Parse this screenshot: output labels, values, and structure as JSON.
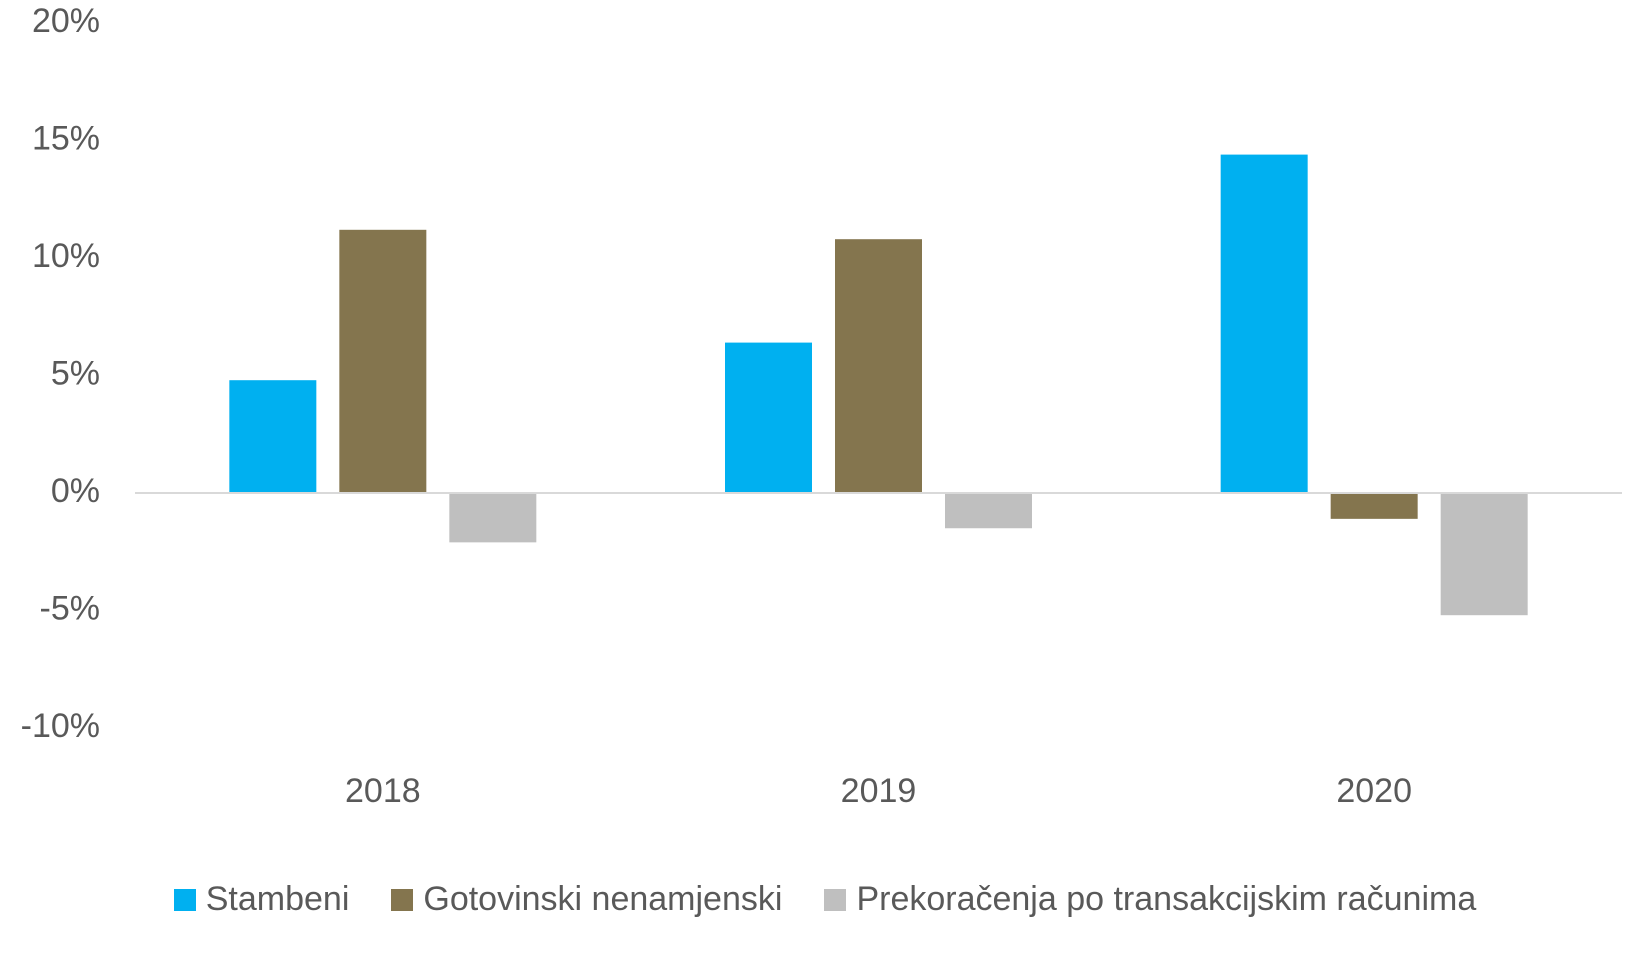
{
  "chart_data": {
    "type": "bar",
    "title": "",
    "xlabel": "",
    "ylabel": "",
    "categories": [
      "2018",
      "2019",
      "2020"
    ],
    "ylim": [
      -10,
      20
    ],
    "y_ticks": [
      20,
      15,
      10,
      5,
      0,
      -5,
      -10
    ],
    "y_tick_labels": [
      "20%",
      "15%",
      "10%",
      "5%",
      "0%",
      "-5%",
      "-10%"
    ],
    "series": [
      {
        "name": "Stambeni",
        "color": "#00B0F0",
        "values": [
          4.8,
          6.4,
          14.4
        ]
      },
      {
        "name": "Gotovinski nenamjenski",
        "color": "#84754E",
        "values": [
          11.2,
          10.8,
          -1.1
        ]
      },
      {
        "name": "Prekoračenja po transakcijskim računima",
        "color": "#BFBFBF",
        "values": [
          -2.1,
          -1.5,
          -5.2
        ]
      }
    ],
    "grid": false,
    "legend_position": "bottom"
  }
}
